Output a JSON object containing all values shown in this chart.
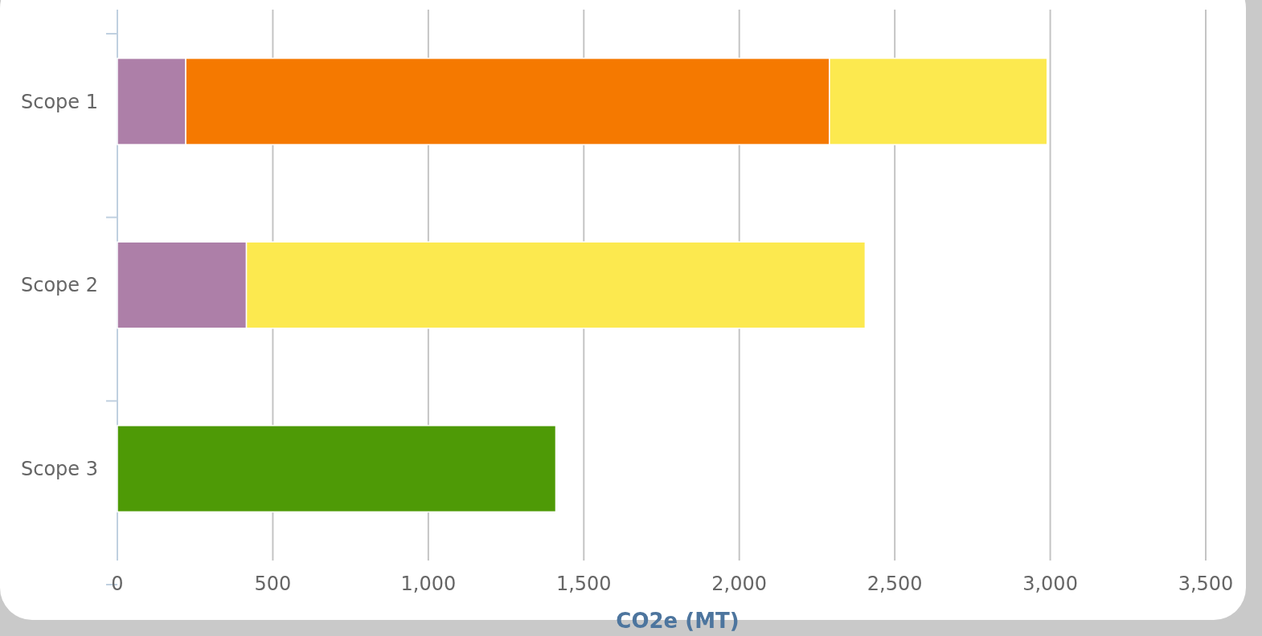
{
  "chart_data": {
    "type": "bar",
    "orientation": "horizontal",
    "stacked": true,
    "xlabel": "CO2e (MT)",
    "categories": [
      "Scope 1",
      "Scope 2",
      "Scope 3"
    ],
    "series": [
      {
        "color": "#ad7fa8",
        "values": [
          220,
          415,
          null
        ]
      },
      {
        "color": "#f57900",
        "values": [
          2070,
          null,
          null
        ]
      },
      {
        "color": "#fce94f",
        "values": [
          700,
          1990,
          null
        ]
      },
      {
        "color": "#4e9a06",
        "values": [
          null,
          null,
          1410
        ]
      }
    ],
    "xlim": [
      0,
      3500
    ],
    "xticks": [
      {
        "value": 0,
        "label": "0"
      },
      {
        "value": 500,
        "label": "500"
      },
      {
        "value": 1000,
        "label": "1,000"
      },
      {
        "value": 1500,
        "label": "1,500"
      },
      {
        "value": 2000,
        "label": "2,000"
      },
      {
        "value": 2500,
        "label": "2,500"
      },
      {
        "value": 3000,
        "label": "3,000"
      },
      {
        "value": 3500,
        "label": "3,500"
      }
    ],
    "grid": "x"
  }
}
